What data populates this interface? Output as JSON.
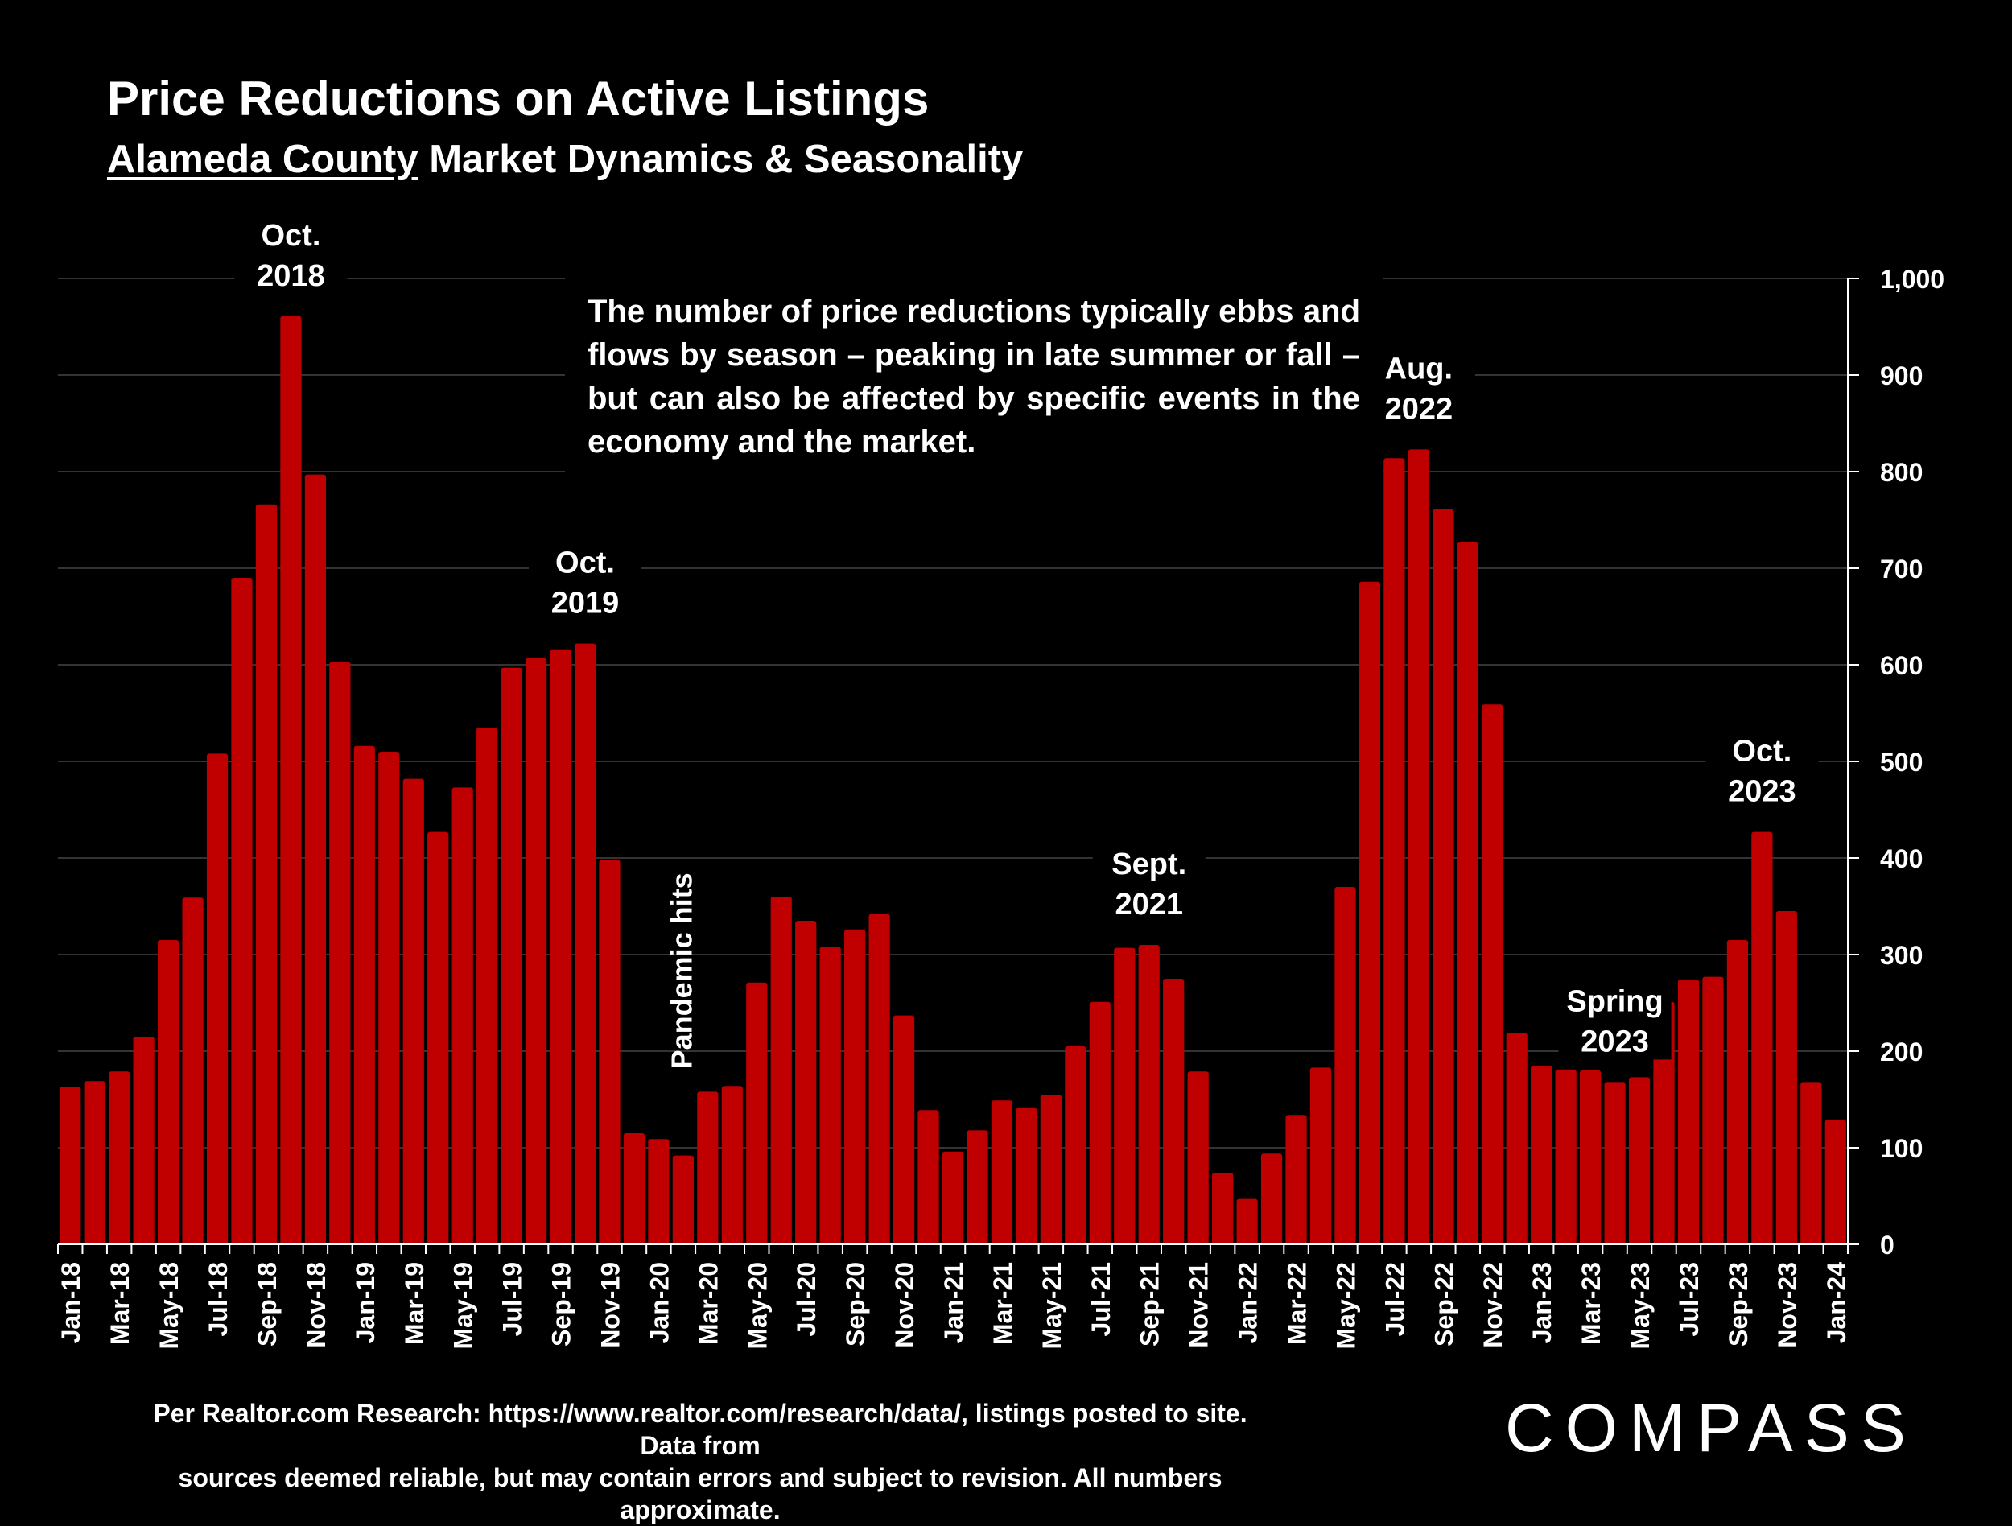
{
  "header": {
    "title": "Price Reductions on Active Listings",
    "subtitle_underlined": "Alameda County",
    "subtitle_rest": " Market Dynamics & Seasonality"
  },
  "annotation_box": "The number of price reductions typically ebbs and flows by season – peaking in late summer or fall – but can also be affected by specific events in the economy and the market.",
  "footer": {
    "source_line1": "Per Realtor.com Research:  https://www.realtor.com/research/data/, listings posted to site. Data from",
    "source_line2": "sources deemed reliable, but may contain errors and subject to revision. All numbers approximate.",
    "brand": "COMPASS"
  },
  "colors": {
    "background": "#000000",
    "bar": "#C00000",
    "text": "#FFFFFF",
    "grid": "#333333"
  },
  "chart_data": {
    "type": "bar",
    "y_axis_position": "right",
    "ylim": [
      0,
      1000
    ],
    "yticks": [
      "0",
      "100",
      "200",
      "300",
      "400",
      "500",
      "600",
      "700",
      "800",
      "900",
      "1,000"
    ],
    "ytick_values": [
      0,
      100,
      200,
      300,
      400,
      500,
      600,
      700,
      800,
      900,
      1000
    ],
    "grid": true,
    "categories": [
      "Jan-18",
      "Feb-18",
      "Mar-18",
      "Apr-18",
      "May-18",
      "Jun-18",
      "Jul-18",
      "Aug-18",
      "Sep-18",
      "Oct-18",
      "Nov-18",
      "Dec-18",
      "Jan-19",
      "Feb-19",
      "Mar-19",
      "Apr-19",
      "May-19",
      "Jun-19",
      "Jul-19",
      "Aug-19",
      "Sep-19",
      "Oct-19",
      "Nov-19",
      "Dec-19",
      "Jan-20",
      "Feb-20",
      "Mar-20",
      "Apr-20",
      "May-20",
      "Jun-20",
      "Jul-20",
      "Aug-20",
      "Sep-20",
      "Oct-20",
      "Nov-20",
      "Dec-20",
      "Jan-21",
      "Feb-21",
      "Mar-21",
      "Apr-21",
      "May-21",
      "Jun-21",
      "Jul-21",
      "Aug-21",
      "Sep-21",
      "Oct-21",
      "Nov-21",
      "Dec-21",
      "Jan-22",
      "Feb-22",
      "Mar-22",
      "Apr-22",
      "May-22",
      "Jun-22",
      "Jul-22",
      "Aug-22",
      "Sep-22",
      "Oct-22",
      "Nov-22",
      "Dec-22",
      "Jan-23",
      "Feb-23",
      "Mar-23",
      "Apr-23",
      "May-23",
      "Jun-23",
      "Jul-23",
      "Aug-23",
      "Sep-23",
      "Oct-23",
      "Nov-23",
      "Dec-23",
      "Jan-24"
    ],
    "values": [
      163,
      169,
      179,
      215,
      315,
      359,
      508,
      690,
      766,
      961,
      797,
      603,
      516,
      510,
      482,
      427,
      473,
      535,
      597,
      607,
      616,
      622,
      398,
      115,
      109,
      92,
      158,
      164,
      271,
      360,
      335,
      308,
      326,
      342,
      237,
      139,
      96,
      118,
      149,
      141,
      155,
      205,
      251,
      307,
      310,
      275,
      179,
      74,
      47,
      94,
      134,
      183,
      370,
      686,
      814,
      823,
      761,
      727,
      559,
      219,
      185,
      181,
      180,
      168,
      173,
      251,
      274,
      277,
      315,
      427,
      345,
      168,
      129
    ],
    "xtick_labels": [
      "Jan-18",
      "Mar-18",
      "May-18",
      "Jul-18",
      "Sep-18",
      "Nov-18",
      "Jan-19",
      "Mar-19",
      "May-19",
      "Jul-19",
      "Sep-19",
      "Nov-19",
      "Jan-20",
      "Mar-20",
      "May-20",
      "Jul-20",
      "Sep-20",
      "Nov-20",
      "Jan-21",
      "Mar-21",
      "May-21",
      "Jul-21",
      "Sep-21",
      "Nov-21",
      "Jan-22",
      "Mar-22",
      "May-22",
      "Jul-22",
      "Sep-22",
      "Nov-22",
      "Jan-23",
      "Mar-23",
      "May-23",
      "Jul-23",
      "Sep-23",
      "Nov-23",
      "Jan-24"
    ],
    "annotations": [
      {
        "line1": "Oct.",
        "line2": "2018",
        "index": 9
      },
      {
        "line1": "Oct.",
        "line2": "2019",
        "index": 21
      },
      {
        "line1": "Pandemic hits",
        "line2": "",
        "index": 26,
        "rotated": true
      },
      {
        "line1": "Sept.",
        "line2": "2021",
        "index": 44
      },
      {
        "line1": "Aug.",
        "line2": "2022",
        "index": 55
      },
      {
        "line1": "Spring",
        "line2": "2023",
        "index": 63
      },
      {
        "line1": "Oct.",
        "line2": "2023",
        "index": 69
      }
    ]
  }
}
